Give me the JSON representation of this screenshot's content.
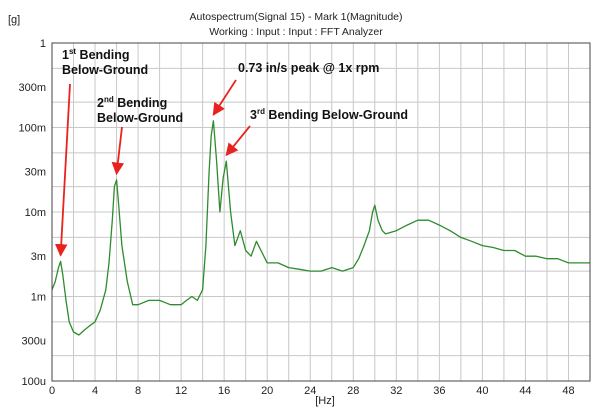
{
  "chart_data": {
    "type": "line",
    "title": "Autospectrum(Signal 15) - Mark 1(Magnitude)",
    "subtitle": "Working : Input : Input : FFT Analyzer",
    "ylabel": "[g]",
    "xlabel": "[Hz]",
    "x_scale": "linear",
    "y_scale": "log",
    "xlim": [
      0,
      50
    ],
    "ylim": [
      0.0001,
      1
    ],
    "x_ticks": [
      0,
      4,
      8,
      12,
      16,
      20,
      24,
      28,
      32,
      36,
      40,
      44,
      48
    ],
    "y_ticks": [
      {
        "value": 1,
        "label": "1"
      },
      {
        "value": 0.3,
        "label": "300m"
      },
      {
        "value": 0.1,
        "label": "100m"
      },
      {
        "value": 0.03,
        "label": "30m"
      },
      {
        "value": 0.01,
        "label": "10m"
      },
      {
        "value": 0.003,
        "label": "3m"
      },
      {
        "value": 0.001,
        "label": "1m"
      },
      {
        "value": 0.0003,
        "label": "300u"
      },
      {
        "value": 0.0001,
        "label": "100u"
      }
    ],
    "grid": true,
    "series": [
      {
        "color": "#2e8b2e",
        "x": [
          0,
          0.3,
          0.6,
          0.8,
          1.0,
          1.3,
          1.6,
          2.0,
          2.5,
          3.0,
          3.5,
          4.0,
          4.5,
          5.0,
          5.3,
          5.6,
          5.8,
          6.0,
          6.2,
          6.5,
          7.0,
          7.5,
          8.0,
          9.0,
          10.0,
          11.0,
          12.0,
          12.5,
          13.0,
          13.5,
          14.0,
          14.3,
          14.6,
          14.8,
          15.0,
          15.3,
          15.6,
          15.9,
          16.2,
          16.6,
          17.0,
          17.5,
          18.0,
          18.5,
          19.0,
          20.0,
          21.0,
          22.0,
          23.0,
          24.0,
          25.0,
          26.0,
          27.0,
          28.0,
          28.5,
          29.0,
          29.5,
          29.8,
          30.0,
          30.3,
          30.7,
          31.0,
          32.0,
          33.0,
          34.0,
          35.0,
          36.0,
          37.0,
          38.0,
          39.0,
          40.0,
          41.0,
          42.0,
          43.0,
          44.0,
          45.0,
          46.0,
          47.0,
          48.0,
          49.0,
          50.0
        ],
        "y": [
          0.0012,
          0.0015,
          0.0022,
          0.0026,
          0.0018,
          0.0009,
          0.0005,
          0.00038,
          0.00035,
          0.0004,
          0.00045,
          0.0005,
          0.0007,
          0.0012,
          0.0025,
          0.008,
          0.02,
          0.024,
          0.012,
          0.004,
          0.0015,
          0.0008,
          0.0008,
          0.0009,
          0.0009,
          0.0008,
          0.0008,
          0.0009,
          0.001,
          0.0009,
          0.0012,
          0.004,
          0.03,
          0.08,
          0.12,
          0.04,
          0.01,
          0.025,
          0.04,
          0.01,
          0.004,
          0.006,
          0.0035,
          0.003,
          0.0045,
          0.0025,
          0.0025,
          0.0022,
          0.0021,
          0.002,
          0.002,
          0.0022,
          0.002,
          0.0022,
          0.0028,
          0.004,
          0.006,
          0.01,
          0.012,
          0.008,
          0.006,
          0.0055,
          0.006,
          0.007,
          0.008,
          0.008,
          0.007,
          0.006,
          0.005,
          0.0045,
          0.004,
          0.0038,
          0.0035,
          0.0035,
          0.003,
          0.003,
          0.0028,
          0.0028,
          0.0025,
          0.0025,
          0.0025
        ]
      }
    ],
    "annotations": [
      {
        "id": "first-bending",
        "lines": [
          [
            "1",
            "st",
            " Bending"
          ],
          [
            "Below-Ground"
          ]
        ],
        "target_x": 0.8,
        "target_y": 0.0026
      },
      {
        "id": "second-bending",
        "lines": [
          [
            "2",
            "nd",
            " Bending"
          ],
          [
            "Below-Ground"
          ]
        ],
        "target_x": 6.0,
        "target_y": 0.024
      },
      {
        "id": "peak-1x-rpm",
        "lines": [
          [
            "0.73 in/s peak @ 1x rpm"
          ]
        ],
        "target_x": 15.0,
        "target_y": 0.12
      },
      {
        "id": "third-bending",
        "lines": [
          [
            "3",
            "rd",
            " Bending Below-Ground"
          ]
        ],
        "target_x": 16.2,
        "target_y": 0.04
      }
    ]
  },
  "colors": {
    "grid": "#c8c8c8",
    "frame": "#444444",
    "series": "#2e8b2e",
    "arrow": "#e8231e"
  }
}
